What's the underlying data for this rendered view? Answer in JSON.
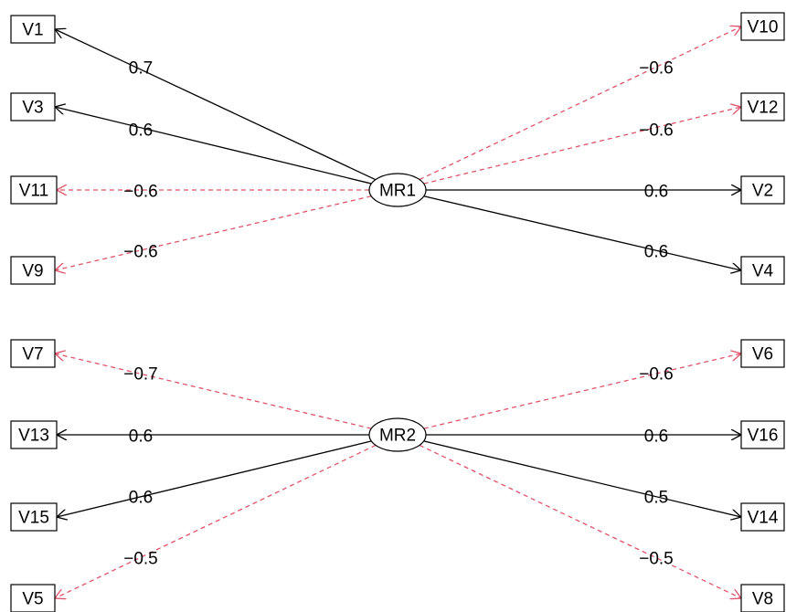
{
  "diagram": {
    "type": "factor-loading-diagram",
    "factors": [
      "MR1",
      "MR2"
    ],
    "variables": [
      "V1",
      "V3",
      "V11",
      "V9",
      "V10",
      "V12",
      "V2",
      "V4",
      "V7",
      "V13",
      "V15",
      "V5",
      "V6",
      "V16",
      "V14",
      "V8"
    ],
    "positive_color": "#000000",
    "negative_color": "#DF536B",
    "edges": [
      {
        "factor": "MR1",
        "variable": "V1",
        "label": "0.7",
        "value": 0.7
      },
      {
        "factor": "MR1",
        "variable": "V3",
        "label": "0.6",
        "value": 0.6
      },
      {
        "factor": "MR1",
        "variable": "V11",
        "label": "−0.6",
        "value": -0.6
      },
      {
        "factor": "MR1",
        "variable": "V9",
        "label": "−0.6",
        "value": -0.6
      },
      {
        "factor": "MR1",
        "variable": "V10",
        "label": "−0.6",
        "value": -0.6
      },
      {
        "factor": "MR1",
        "variable": "V12",
        "label": "−0.6",
        "value": -0.6
      },
      {
        "factor": "MR1",
        "variable": "V2",
        "label": "0.6",
        "value": 0.6
      },
      {
        "factor": "MR1",
        "variable": "V4",
        "label": "0.6",
        "value": 0.6
      },
      {
        "factor": "MR2",
        "variable": "V7",
        "label": "−0.7",
        "value": -0.7
      },
      {
        "factor": "MR2",
        "variable": "V13",
        "label": "0.6",
        "value": 0.6
      },
      {
        "factor": "MR2",
        "variable": "V15",
        "label": "0.6",
        "value": 0.6
      },
      {
        "factor": "MR2",
        "variable": "V5",
        "label": "−0.5",
        "value": -0.5
      },
      {
        "factor": "MR2",
        "variable": "V6",
        "label": "−0.6",
        "value": -0.6
      },
      {
        "factor": "MR2",
        "variable": "V16",
        "label": "0.6",
        "value": 0.6
      },
      {
        "factor": "MR2",
        "variable": "V14",
        "label": "0.5",
        "value": 0.5
      },
      {
        "factor": "MR2",
        "variable": "V8",
        "label": "−0.5",
        "value": -0.5
      }
    ]
  }
}
